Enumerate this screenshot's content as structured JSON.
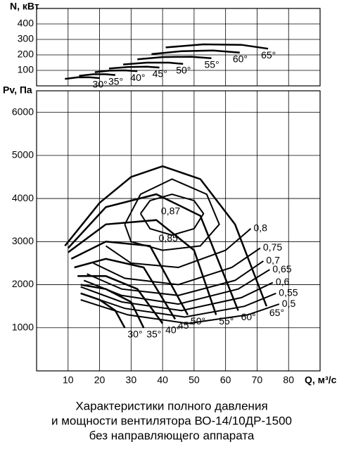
{
  "chart_data": [
    {
      "type": "line",
      "y_label": "N, кВт",
      "xlim": [
        0,
        90
      ],
      "xticks": [
        10,
        20,
        30,
        40,
        50,
        60,
        70,
        80
      ],
      "ylim": [
        0,
        500
      ],
      "yticks": [
        100,
        200,
        300,
        400
      ],
      "grid": true,
      "color": "#000000",
      "series": [
        {
          "name": "30°",
          "x": [
            9,
            13,
            17,
            20
          ],
          "values": [
            45,
            55,
            55,
            50
          ]
        },
        {
          "name": "35°",
          "x": [
            13.5,
            18,
            22,
            25
          ],
          "values": [
            65,
            75,
            75,
            70
          ]
        },
        {
          "name": "40°",
          "x": [
            18.5,
            23,
            28,
            32
          ],
          "values": [
            88,
            98,
            100,
            95
          ]
        },
        {
          "name": "45°",
          "x": [
            23,
            29,
            35,
            39
          ],
          "values": [
            112,
            122,
            124,
            118
          ]
        },
        {
          "name": "50°",
          "x": [
            27.5,
            35,
            42,
            46.5
          ],
          "values": [
            138,
            150,
            150,
            142
          ]
        },
        {
          "name": "55°",
          "x": [
            32,
            40,
            49,
            55.5
          ],
          "values": [
            172,
            186,
            188,
            178
          ]
        },
        {
          "name": "60°",
          "x": [
            36.5,
            46,
            56,
            64.5
          ],
          "values": [
            205,
            224,
            228,
            215
          ]
        },
        {
          "name": "65°",
          "x": [
            41,
            53,
            65,
            73.5
          ],
          "values": [
            248,
            268,
            265,
            240
          ]
        }
      ]
    },
    {
      "type": "line",
      "y_label": "Pv, Па",
      "x_label": "Q, м³/с",
      "xlim": [
        0,
        90
      ],
      "xticks": [
        10,
        20,
        30,
        40,
        50,
        60,
        70,
        80
      ],
      "ylim": [
        0,
        6500
      ],
      "yticks": [
        1000,
        2000,
        3000,
        4000,
        5000,
        6000
      ],
      "grid": true,
      "color": "#000000",
      "series": [
        {
          "name": "30°",
          "x": [
            14,
            20,
            25,
            28
          ],
          "values": [
            1800,
            1650,
            1400,
            1000
          ]
        },
        {
          "name": "35°",
          "x": [
            14,
            22,
            30,
            34
          ],
          "values": [
            2000,
            1900,
            1600,
            1000
          ]
        },
        {
          "name": "40°",
          "x": [
            13,
            22,
            32,
            40
          ],
          "values": [
            2200,
            2200,
            1900,
            1100
          ]
        },
        {
          "name": "45°",
          "x": [
            12,
            22,
            34,
            44
          ],
          "values": [
            2400,
            2600,
            2400,
            1200
          ]
        },
        {
          "name": "50°",
          "x": [
            11,
            22,
            36,
            48
          ],
          "values": [
            2600,
            3000,
            2900,
            1300
          ]
        },
        {
          "name": "55°",
          "x": [
            10,
            22,
            38,
            50,
            57
          ],
          "values": [
            2750,
            3400,
            3500,
            2800,
            1300
          ]
        },
        {
          "name": "60°",
          "x": [
            10,
            22,
            38,
            52,
            64
          ],
          "values": [
            2850,
            3800,
            4100,
            3600,
            1400
          ]
        },
        {
          "name": "65°",
          "x": [
            9,
            20,
            30,
            40,
            52,
            63,
            73
          ],
          "values": [
            2900,
            3900,
            4500,
            4750,
            4450,
            3400,
            1500
          ]
        }
      ],
      "contours": [
        {
          "name": "0,87",
          "x": [
            33,
            36,
            43,
            50,
            53,
            50,
            43,
            36,
            33
          ],
          "values": [
            3650,
            3950,
            4100,
            3950,
            3650,
            3300,
            3150,
            3300,
            3650
          ]
        },
        {
          "name": "0,85",
          "x": [
            28,
            33,
            43,
            54,
            58,
            52,
            40,
            30,
            28
          ],
          "values": [
            3400,
            4100,
            4450,
            4100,
            3400,
            2900,
            2800,
            3000,
            3400
          ]
        },
        {
          "name": "0,8",
          "x": [
            22,
            30,
            45,
            60,
            68
          ],
          "values": [
            2900,
            2500,
            2400,
            2800,
            3300
          ]
        },
        {
          "name": "0,75",
          "x": [
            18,
            28,
            45,
            62,
            71
          ],
          "values": [
            2500,
            2150,
            2000,
            2400,
            2850
          ]
        },
        {
          "name": "0,7",
          "x": [
            16,
            27,
            45,
            63,
            72
          ],
          "values": [
            2250,
            1900,
            1750,
            2100,
            2550
          ]
        },
        {
          "name": "0,65",
          "x": [
            15,
            27,
            45,
            64,
            74
          ],
          "values": [
            2100,
            1750,
            1550,
            1900,
            2350
          ]
        },
        {
          "name": "0,6",
          "x": [
            14,
            27,
            46,
            65,
            75
          ],
          "values": [
            1950,
            1600,
            1400,
            1700,
            2050
          ]
        },
        {
          "name": "0,55",
          "x": [
            14,
            28,
            47,
            66,
            76
          ],
          "values": [
            1800,
            1450,
            1250,
            1500,
            1800
          ]
        },
        {
          "name": "0,5",
          "x": [
            14,
            29,
            48,
            67,
            77
          ],
          "values": [
            1650,
            1300,
            1100,
            1300,
            1550
          ]
        }
      ]
    }
  ],
  "caption": [
    "Характеристики полного давления",
    "и мощности вентилятора ВО-14/10ДР-1500",
    "без направляющего аппарата"
  ]
}
